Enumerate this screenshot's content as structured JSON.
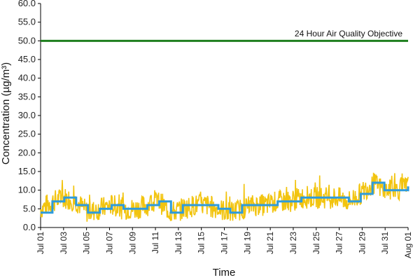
{
  "chart_data": {
    "type": "line",
    "title": "",
    "xlabel": "Time",
    "ylabel": "Concentration (µg/m³)",
    "ylim": [
      0,
      60
    ],
    "yticks": [
      "0.0",
      "5.0",
      "10.0",
      "15.0",
      "20.0",
      "25.0",
      "30.0",
      "35.0",
      "40.0",
      "45.0",
      "50.0",
      "55.0",
      "60.0"
    ],
    "x_range": [
      "Jul 01",
      "Aug 01"
    ],
    "xticks": [
      "Jul 01",
      "Jul 03",
      "Jul 05",
      "Jul 07",
      "Jul 09",
      "Jul 11",
      "Jul 13",
      "Jul 15",
      "Jul 17",
      "Jul 19",
      "Jul 21",
      "Jul 23",
      "Jul 25",
      "Jul 27",
      "Jul 29",
      "Jul 31",
      "Aug 01"
    ],
    "grid": false,
    "legend": "none",
    "annotations": [
      {
        "text": "24 Hour Air Quality Objective",
        "value": 50
      }
    ],
    "series": [
      {
        "color": "#f2c40f",
        "style": "hourly noisy line",
        "x": [
          "Jul 01",
          "Jul 02",
          "Jul 03",
          "Jul 04",
          "Jul 05",
          "Jul 06",
          "Jul 07",
          "Jul 08",
          "Jul 09",
          "Jul 10",
          "Jul 11",
          "Jul 12",
          "Jul 13",
          "Jul 14",
          "Jul 15",
          "Jul 16",
          "Jul 17",
          "Jul 18",
          "Jul 19",
          "Jul 20",
          "Jul 21",
          "Jul 22",
          "Jul 23",
          "Jul 24",
          "Jul 25",
          "Jul 26",
          "Jul 27",
          "Jul 28",
          "Jul 29",
          "Jul 30",
          "Jul 31",
          "Aug 01"
        ],
        "values": [
          5,
          7,
          8,
          7,
          4,
          5,
          6,
          5,
          5,
          6,
          7,
          4,
          5,
          6,
          6,
          5,
          4,
          5,
          6,
          6,
          7,
          7,
          8,
          8,
          8,
          8,
          7,
          9,
          12,
          10,
          10,
          11
        ],
        "range": [
          1,
          18
        ]
      },
      {
        "color": "#2e9bdc",
        "style": "24-hour running mean (step)",
        "x": [
          "Jul 01",
          "Jul 02",
          "Jul 03",
          "Jul 04",
          "Jul 05",
          "Jul 06",
          "Jul 07",
          "Jul 08",
          "Jul 09",
          "Jul 10",
          "Jul 11",
          "Jul 12",
          "Jul 13",
          "Jul 14",
          "Jul 15",
          "Jul 16",
          "Jul 17",
          "Jul 18",
          "Jul 19",
          "Jul 20",
          "Jul 21",
          "Jul 22",
          "Jul 23",
          "Jul 24",
          "Jul 25",
          "Jul 26",
          "Jul 27",
          "Jul 28",
          "Jul 29",
          "Jul 30",
          "Jul 31",
          "Aug 01"
        ],
        "values": [
          4,
          7,
          8,
          6,
          4,
          5,
          6,
          5,
          5,
          6,
          7,
          4,
          6,
          6,
          6,
          5,
          4,
          6,
          6,
          6,
          7,
          7,
          8,
          8,
          8,
          8,
          7,
          9,
          12,
          10,
          10,
          11
        ]
      },
      {
        "color": "#1e7f1e",
        "style": "objective line",
        "x": [
          "Jul 01",
          "Aug 01"
        ],
        "values": [
          50,
          50
        ]
      }
    ]
  }
}
